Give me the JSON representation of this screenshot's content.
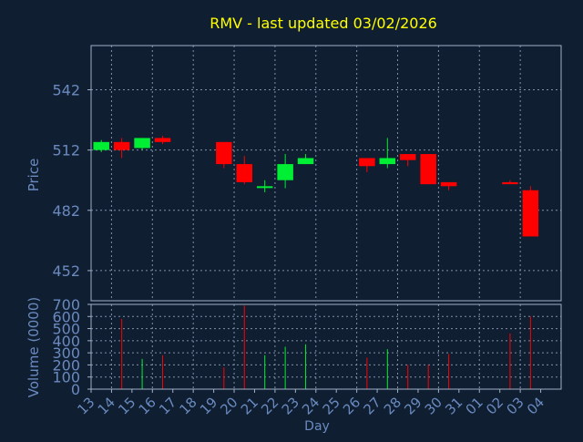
{
  "chart_data": {
    "type": "candlestick",
    "title": "RMV - last updated 03/02/2026",
    "colors": {
      "background": "#0f1e30",
      "title": "#ffff00",
      "axis_text": "#6a8ac0",
      "frame": "#a0b0c8",
      "grid": "#8090a8",
      "up": "#00ee33",
      "down": "#ff0000"
    },
    "price_panel": {
      "ylabel": "Price",
      "yticks": [
        452,
        482,
        512,
        542
      ],
      "ylim": [
        437,
        564
      ],
      "grid": true
    },
    "volume_panel": {
      "ylabel": "Volume (0000)",
      "yticks": [
        0,
        100,
        200,
        300,
        400,
        500,
        600,
        700
      ],
      "ylim": [
        0,
        700
      ]
    },
    "xlabel": "Day",
    "x_labels": [
      "13",
      "14",
      "15",
      "16",
      "17",
      "18",
      "19",
      "20",
      "21",
      "22",
      "23",
      "24",
      "25",
      "26",
      "27",
      "28",
      "29",
      "30",
      "31",
      "01",
      "02",
      "03",
      "04"
    ],
    "candles": [
      {
        "x": "13",
        "open": 512,
        "close": 516,
        "high": 517,
        "low": 511
      },
      {
        "x": "14",
        "open": 516,
        "close": 512,
        "high": 518,
        "low": 508
      },
      {
        "x": "15",
        "open": 513,
        "close": 518,
        "high": 518,
        "low": 512
      },
      {
        "x": "16",
        "open": 518,
        "close": 516,
        "high": 519,
        "low": 515
      },
      {
        "x": "19",
        "open": 516,
        "close": 505,
        "high": 516,
        "low": 503
      },
      {
        "x": "20",
        "open": 505,
        "close": 496,
        "high": 509,
        "low": 495
      },
      {
        "x": "21",
        "open": 494,
        "close": 494,
        "high": 497,
        "low": 491
      },
      {
        "x": "22",
        "open": 497,
        "close": 505,
        "high": 510,
        "low": 493
      },
      {
        "x": "23",
        "open": 505,
        "close": 508,
        "high": 510,
        "low": 505
      },
      {
        "x": "26",
        "open": 508,
        "close": 504,
        "high": 508,
        "low": 501
      },
      {
        "x": "27",
        "open": 505,
        "close": 508,
        "high": 518,
        "low": 503
      },
      {
        "x": "28",
        "open": 510,
        "close": 507,
        "high": 510,
        "low": 504
      },
      {
        "x": "29",
        "open": 510,
        "close": 495,
        "high": 510,
        "low": 495
      },
      {
        "x": "30",
        "open": 496,
        "close": 494,
        "high": 496,
        "low": 492
      },
      {
        "x": "02",
        "open": 496,
        "close": 495,
        "high": 497,
        "low": 495
      },
      {
        "x": "03",
        "open": 492,
        "close": 469,
        "high": 494,
        "low": 469
      }
    ],
    "volumes": [
      {
        "x": "13",
        "value": 0,
        "dir": "up"
      },
      {
        "x": "14",
        "value": 580,
        "dir": "down"
      },
      {
        "x": "15",
        "value": 250,
        "dir": "up"
      },
      {
        "x": "16",
        "value": 280,
        "dir": "down"
      },
      {
        "x": "19",
        "value": 180,
        "dir": "down"
      },
      {
        "x": "20",
        "value": 690,
        "dir": "down"
      },
      {
        "x": "21",
        "value": 280,
        "dir": "up"
      },
      {
        "x": "22",
        "value": 350,
        "dir": "up"
      },
      {
        "x": "23",
        "value": 370,
        "dir": "up"
      },
      {
        "x": "26",
        "value": 260,
        "dir": "down"
      },
      {
        "x": "27",
        "value": 330,
        "dir": "up"
      },
      {
        "x": "28",
        "value": 200,
        "dir": "down"
      },
      {
        "x": "29",
        "value": 200,
        "dir": "down"
      },
      {
        "x": "30",
        "value": 290,
        "dir": "down"
      },
      {
        "x": "02",
        "value": 460,
        "dir": "down"
      },
      {
        "x": "03",
        "value": 600,
        "dir": "down"
      }
    ]
  }
}
